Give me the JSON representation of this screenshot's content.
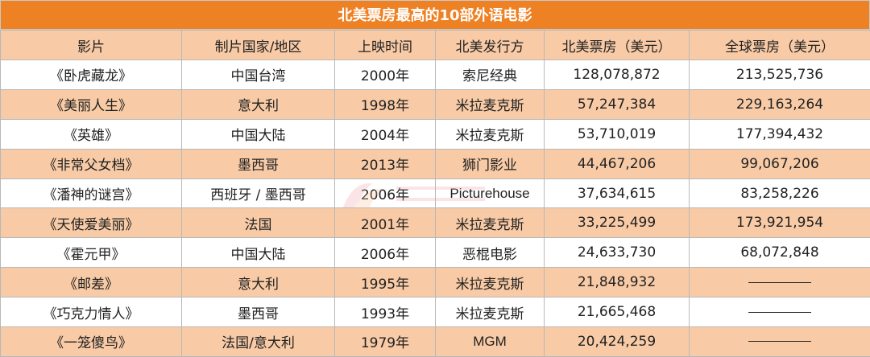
{
  "title": "北美票房最高的10部外语电影",
  "headers": [
    "影片",
    "制片国家/地区",
    "上映时间",
    "北美发行方",
    "北美票房（美元）",
    "全球票房（美元）"
  ],
  "rows": [
    [
      "《卧虎藏龙》",
      "中国台湾",
      "2000年",
      "索尼经典",
      "128,078,872",
      "213,525,736"
    ],
    [
      "《美丽人生》",
      "意大利",
      "1998年",
      "米拉麦克斯",
      "57,247,384",
      "229,163,264"
    ],
    [
      "《英雄》",
      "中国大陆",
      "2004年",
      "米拉麦克斯",
      "53,710,019",
      "177,394,432"
    ],
    [
      "《非常父女档》",
      "墨西哥",
      "2013年",
      "狮门影业",
      "44,467,206",
      "99,067,206"
    ],
    [
      "《潘神的谜宫》",
      "西班牙 / 墨西哥",
      "2006年",
      "Picturehouse",
      "37,634,615",
      "83,258,226"
    ],
    [
      "《天使爱美丽》",
      "法国",
      "2001年",
      "米拉麦克斯",
      "33,225,499",
      "173,921,954"
    ],
    [
      "《霍元甲》",
      "中国大陆",
      "2006年",
      "恶棍电影",
      "24,633,730",
      "68,072,848"
    ],
    [
      "《邮差》",
      "意大利",
      "1995年",
      "米拉麦克斯",
      "21,848,932",
      ""
    ],
    [
      "《巧克力情人》",
      "墨西哥",
      "1993年",
      "米拉麦克斯",
      "21,665,468",
      ""
    ],
    [
      "《一笼傻鸟》",
      "法国/意大利",
      "1979年",
      "MGM",
      "20,424,259",
      ""
    ]
  ],
  "colors": {
    "title_bg": "#ee8124",
    "band": "#f8cba6",
    "plain": "#ffffff"
  }
}
